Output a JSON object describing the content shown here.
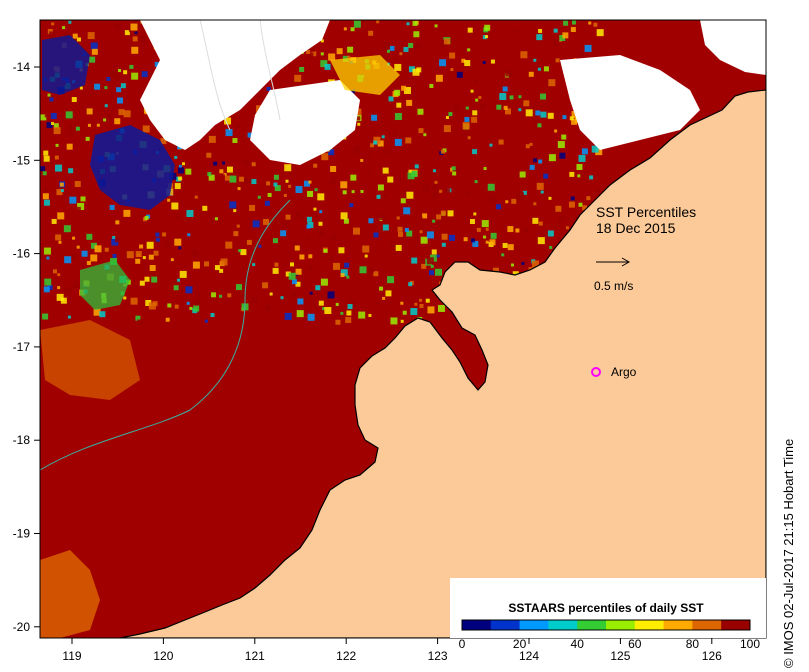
{
  "map": {
    "title_line1": "SST Percentiles",
    "title_line2": "18 Dec 2015",
    "velocity_label": "0.5 m/s",
    "argo_label": "Argo",
    "x_ticks": [
      "119",
      "120",
      "121",
      "122",
      "123",
      "124",
      "125",
      "126"
    ],
    "y_ticks": [
      "-14",
      "-15",
      "-16",
      "-17",
      "-18",
      "-19",
      "-20"
    ],
    "credit": "© IMOS 02-Jul-2017 21:15 Hobart Time"
  },
  "colorbar": {
    "title": "SSTAARS percentiles of daily SST",
    "tick_labels": [
      "0",
      "20",
      "40",
      "60",
      "80",
      "100"
    ],
    "colors": [
      "#00007f",
      "#0033cc",
      "#0099ff",
      "#00cccc",
      "#33cc33",
      "#99ee00",
      "#ffee00",
      "#ffaa00",
      "#dd6600",
      "#990000"
    ]
  },
  "colors": {
    "land": "#fcc998",
    "ocean_dominant": "#a00000",
    "argo_marker": "#ff00ff",
    "nodata": "#ffffff"
  }
}
